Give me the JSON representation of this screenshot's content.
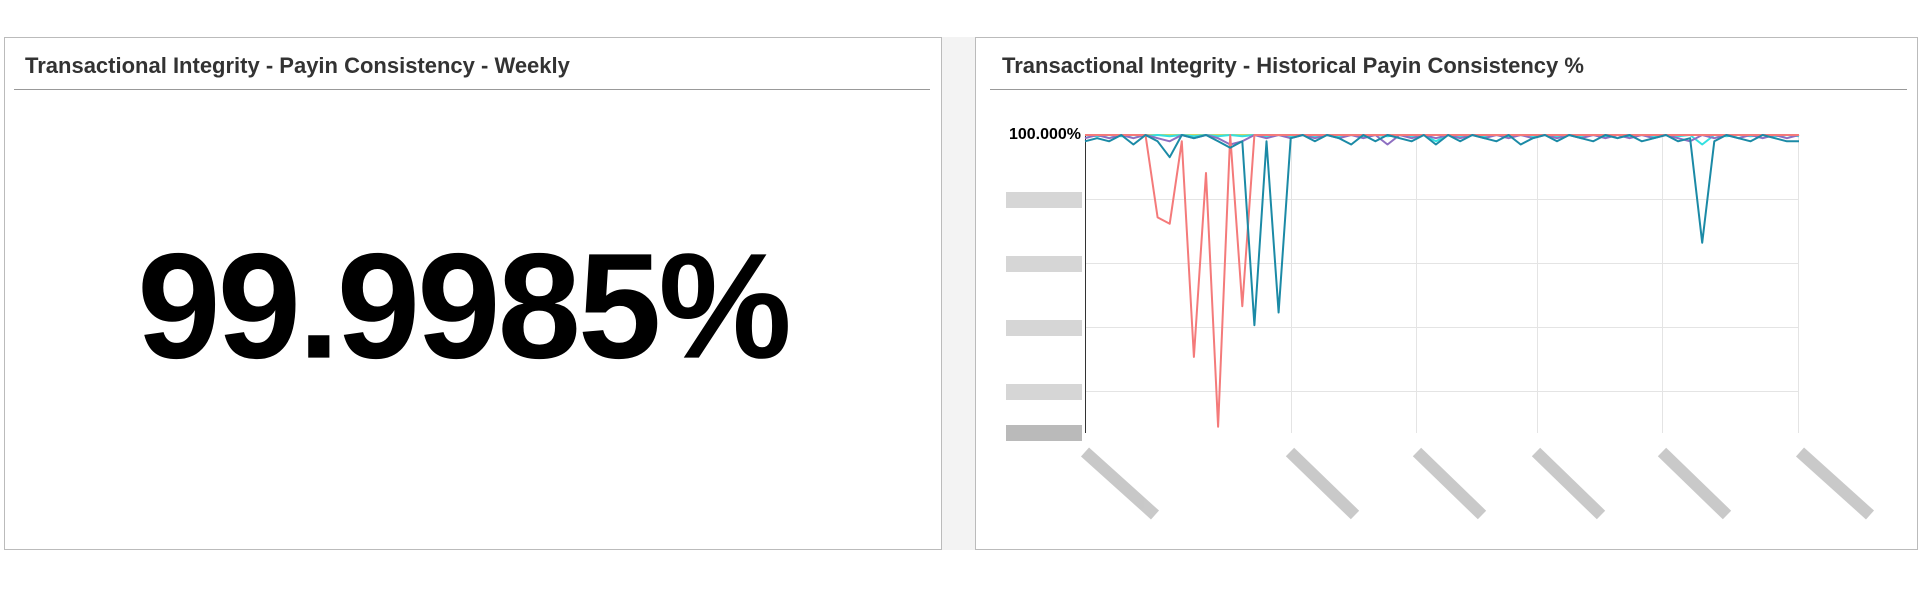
{
  "kpi": {
    "title": "Transactional Integrity - Payin Consistency - Weekly",
    "value": "99.9985%"
  },
  "chart_data": {
    "type": "line",
    "title": "Transactional Integrity - Historical Payin Consistency %",
    "ylim": [
      99.53,
      100.0
    ],
    "yticks": [
      {
        "value": 100,
        "label": "100.000%"
      }
    ],
    "series": [
      {
        "color": "#1b8aa6",
        "values": [
          99.99,
          99.995,
          99.99,
          100,
          99.985,
          100,
          99.99,
          99.965,
          100,
          99.995,
          100,
          99.99,
          99.98,
          99.99,
          99.7,
          99.99,
          99.72,
          99.995,
          100,
          99.99,
          100,
          99.995,
          99.985,
          100,
          99.99,
          100,
          99.995,
          99.99,
          100,
          99.985,
          100,
          99.99,
          100,
          99.995,
          99.99,
          100,
          99.985,
          99.995,
          100,
          99.99,
          100,
          99.995,
          99.99,
          100,
          99.995,
          100,
          99.99,
          99.995,
          100,
          99.99,
          99.995,
          99.83,
          99.99,
          100,
          99.995,
          99.99,
          100,
          99.995,
          99.99,
          99.99
        ]
      },
      {
        "color": "#f47a7a",
        "values": [
          100,
          100,
          100,
          100,
          100,
          100,
          99.87,
          99.86,
          99.99,
          99.65,
          99.94,
          99.54,
          100,
          99.73,
          100,
          100,
          100,
          100,
          100,
          100,
          100,
          100,
          100,
          100,
          100,
          100,
          100,
          100,
          100,
          100,
          100,
          100,
          100,
          100,
          100,
          100,
          100,
          100,
          100,
          100,
          100,
          100,
          100,
          100,
          100,
          100,
          100,
          100,
          100,
          100,
          100,
          100,
          100,
          100,
          100,
          100,
          100,
          100,
          100,
          100
        ]
      },
      {
        "color": "#8e6fc1",
        "values": [
          99.995,
          100,
          99.995,
          100,
          99.995,
          100,
          99.995,
          99.99,
          100,
          99.995,
          100,
          99.995,
          99.985,
          99.99,
          100,
          99.995,
          100,
          99.995,
          100,
          99.995,
          100,
          99.995,
          100,
          99.995,
          100,
          99.985,
          100,
          99.995,
          100,
          99.995,
          100,
          99.995,
          100,
          99.995,
          100,
          99.995,
          100,
          99.995,
          100,
          99.995,
          100,
          99.995,
          100,
          99.995,
          100,
          99.995,
          100,
          99.995,
          100,
          99.995,
          99.99,
          100,
          99.995,
          100,
          99.995,
          100,
          99.995,
          100,
          99.995,
          100
        ]
      },
      {
        "color": "#33e0e0",
        "values": [
          100,
          99.998,
          100,
          99.998,
          100,
          99.998,
          100,
          99.998,
          100,
          99.998,
          100,
          99.998,
          100,
          99.998,
          100,
          99.998,
          100,
          99.998,
          100,
          99.998,
          100,
          99.998,
          100,
          99.998,
          100,
          99.998,
          100,
          99.998,
          100,
          99.99,
          100,
          99.998,
          100,
          99.998,
          100,
          99.998,
          100,
          99.998,
          100,
          99.998,
          100,
          99.998,
          100,
          99.998,
          100,
          99.998,
          100,
          99.998,
          100,
          99.998,
          100,
          99.985,
          100,
          99.998,
          100,
          99.998,
          100,
          99.998,
          100,
          99.998
        ]
      },
      {
        "color": "#c9d46a",
        "values": [
          100,
          100,
          100,
          100,
          100,
          100,
          100,
          100,
          100,
          100,
          100,
          100,
          100,
          100,
          100,
          100,
          100,
          100,
          100,
          100,
          100,
          100,
          100,
          100,
          100,
          100,
          100,
          100,
          100,
          100,
          100,
          100,
          100,
          100,
          100,
          100,
          100,
          100,
          100,
          100,
          100,
          100,
          100,
          100,
          100,
          100,
          100,
          100,
          100,
          100,
          100,
          100,
          100,
          100,
          100,
          100,
          100,
          100,
          100,
          100
        ]
      }
    ]
  }
}
